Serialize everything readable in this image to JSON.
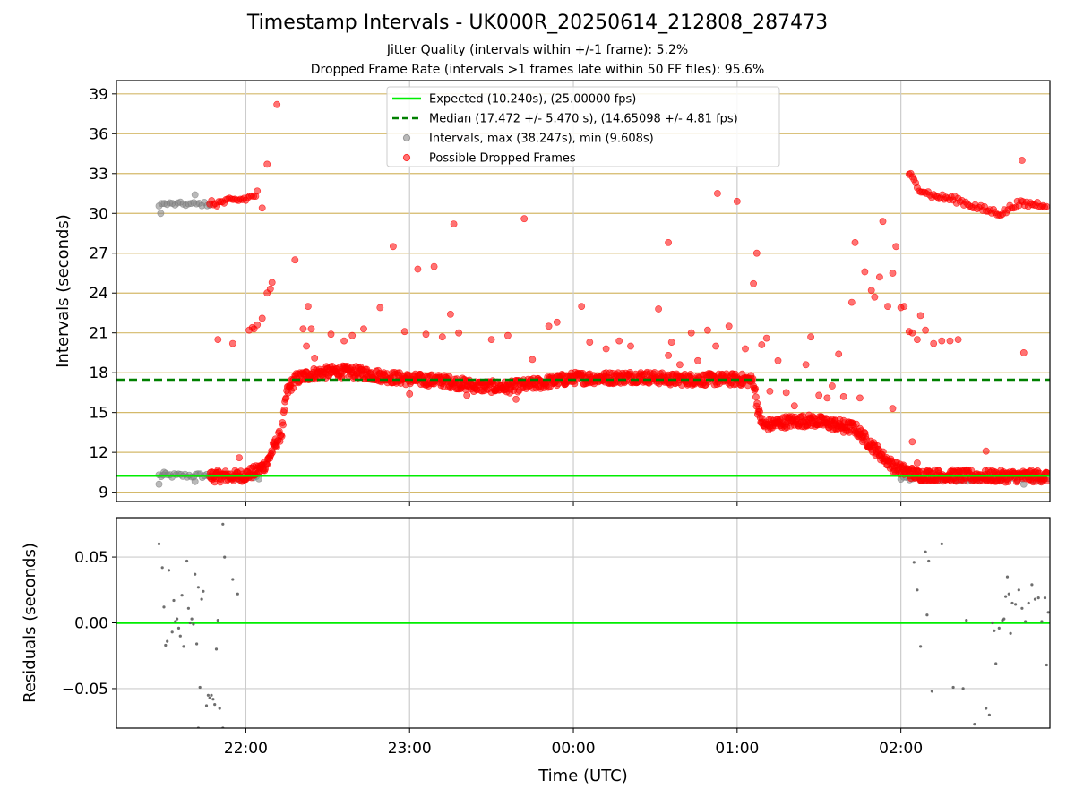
{
  "figure": {
    "title": "Timestamp Intervals - UK000R_20250614_212808_287473",
    "subtitle_1": "Jitter Quality (intervals within +/-1 frame): 5.2%",
    "subtitle_2": "Dropped Frame Rate (intervals >1 frames late within 50 FF files): 95.6%",
    "xlabel": "Time (UTC)"
  },
  "colors": {
    "expected": "#00ee00",
    "median": "#008000",
    "intervals": "#808080",
    "dropped": "#ff0000",
    "hgrid": "#d4b96a",
    "vgrid": "#cccccc",
    "residual_points": "#555555"
  },
  "chart_data": [
    {
      "type": "scatter",
      "ylabel": "Intervals (seconds)",
      "ylim": [
        8.3,
        40.0
      ],
      "yticks": [
        9,
        12,
        15,
        18,
        21,
        24,
        27,
        30,
        33,
        36,
        39
      ],
      "xlim_hours": [
        21.21,
        26.91
      ],
      "xticks": [
        {
          "h": 22,
          "label": "22:00"
        },
        {
          "h": 23,
          "label": "23:00"
        },
        {
          "h": 24,
          "label": "00:00"
        },
        {
          "h": 25,
          "label": "01:00"
        },
        {
          "h": 26,
          "label": "02:00"
        }
      ],
      "grid": true,
      "legend_position": "top-center",
      "legend": [
        {
          "key": "expected",
          "label": "Expected (10.240s), (25.00000 fps)"
        },
        {
          "key": "median",
          "label": "Median (17.472 +/- 5.470 s), (14.65098 +/- 4.81 fps)"
        },
        {
          "key": "intervals",
          "label": "Intervals, max (38.247s), min (9.608s)"
        },
        {
          "key": "dropped",
          "label": "Possible Dropped Frames"
        }
      ],
      "expected_value": 10.24,
      "median_value": 17.472,
      "intervals_low_segments": [
        {
          "x0": 21.47,
          "x1": 21.8,
          "y": 10.25,
          "n": 26
        },
        {
          "x0": 21.87,
          "x1": 22.08,
          "y": 10.1,
          "n": 14
        },
        {
          "x0": 26.0,
          "x1": 26.62,
          "y": 10.0,
          "n": 36
        },
        {
          "x0": 26.62,
          "x1": 26.9,
          "y": 10.0,
          "n": 10
        }
      ],
      "intervals_high_segment": {
        "x0": 21.47,
        "x1": 21.78,
        "y": 30.7,
        "n": 20
      },
      "intervals_outliers": [
        [
          21.47,
          9.6
        ],
        [
          21.48,
          30.0
        ],
        [
          21.5,
          10.5
        ],
        [
          21.69,
          9.8
        ],
        [
          21.69,
          31.4
        ],
        [
          26.75,
          9.6
        ],
        [
          26.85,
          9.8
        ]
      ],
      "dropped_trend": [
        [
          21.78,
          10.2
        ],
        [
          21.84,
          10.2
        ],
        [
          21.91,
          10.2
        ],
        [
          21.95,
          10.2
        ],
        [
          22.0,
          10.3
        ],
        [
          22.07,
          10.6
        ],
        [
          22.13,
          11.2
        ],
        [
          22.17,
          12.4
        ],
        [
          22.22,
          13.5
        ],
        [
          22.25,
          16.5
        ],
        [
          22.3,
          17.5
        ],
        [
          22.4,
          17.9
        ],
        [
          22.55,
          18.1
        ],
        [
          22.7,
          18.0
        ],
        [
          22.85,
          17.7
        ],
        [
          23.0,
          17.5
        ],
        [
          23.2,
          17.4
        ],
        [
          23.4,
          17.0
        ],
        [
          23.6,
          16.9
        ],
        [
          23.8,
          17.2
        ],
        [
          24.0,
          17.6
        ],
        [
          24.2,
          17.6
        ],
        [
          24.4,
          17.7
        ],
        [
          24.6,
          17.5
        ],
        [
          24.8,
          17.5
        ],
        [
          25.0,
          17.5
        ],
        [
          25.1,
          17.4
        ],
        [
          25.13,
          15.0
        ],
        [
          25.16,
          14.0
        ],
        [
          25.3,
          14.3
        ],
        [
          25.45,
          14.4
        ],
        [
          25.6,
          14.1
        ],
        [
          25.72,
          13.8
        ],
        [
          25.8,
          12.8
        ],
        [
          25.88,
          11.8
        ],
        [
          25.95,
          11.0
        ],
        [
          26.0,
          10.7
        ],
        [
          26.05,
          10.5
        ],
        [
          26.1,
          10.3
        ],
        [
          26.5,
          10.2
        ],
        [
          26.7,
          10.2
        ],
        [
          26.9,
          10.2
        ]
      ],
      "dropped_high_trend": [
        [
          21.78,
          30.7
        ],
        [
          21.9,
          30.9
        ],
        [
          22.0,
          31.1
        ],
        [
          22.06,
          31.4
        ],
        [
          22.08,
          31.6
        ],
        [
          26.05,
          33.0
        ],
        [
          26.1,
          32.0
        ],
        [
          26.2,
          31.3
        ],
        [
          26.35,
          31.0
        ],
        [
          26.5,
          30.3
        ],
        [
          26.62,
          30.0
        ],
        [
          26.7,
          30.7
        ],
        [
          26.9,
          30.7
        ]
      ],
      "dropped_scatter": [
        [
          21.83,
          20.5
        ],
        [
          21.92,
          20.2
        ],
        [
          21.96,
          11.6
        ],
        [
          22.02,
          21.2
        ],
        [
          22.04,
          21.4
        ],
        [
          22.05,
          21.3
        ],
        [
          22.07,
          21.6
        ],
        [
          22.1,
          22.1
        ],
        [
          22.13,
          24.0
        ],
        [
          22.15,
          24.3
        ],
        [
          22.16,
          24.8
        ],
        [
          22.19,
          38.2
        ],
        [
          22.13,
          33.7
        ],
        [
          22.1,
          30.4
        ],
        [
          22.3,
          26.5
        ],
        [
          22.35,
          21.3
        ],
        [
          22.38,
          23.0
        ],
        [
          22.4,
          21.3
        ],
        [
          22.42,
          19.1
        ],
        [
          22.37,
          20.0
        ],
        [
          22.52,
          20.9
        ],
        [
          22.6,
          20.4
        ],
        [
          22.65,
          20.8
        ],
        [
          22.72,
          21.3
        ],
        [
          22.82,
          22.9
        ],
        [
          22.9,
          27.5
        ],
        [
          22.97,
          21.1
        ],
        [
          23.0,
          16.4
        ],
        [
          23.05,
          25.8
        ],
        [
          23.15,
          26.0
        ],
        [
          23.1,
          20.9
        ],
        [
          23.25,
          22.4
        ],
        [
          23.27,
          29.2
        ],
        [
          23.2,
          20.7
        ],
        [
          23.3,
          21.0
        ],
        [
          23.35,
          16.3
        ],
        [
          23.5,
          20.5
        ],
        [
          23.52,
          16.7
        ],
        [
          23.6,
          20.8
        ],
        [
          23.7,
          29.6
        ],
        [
          23.65,
          16.0
        ],
        [
          23.75,
          19.0
        ],
        [
          23.85,
          21.5
        ],
        [
          23.9,
          21.8
        ],
        [
          24.05,
          23.0
        ],
        [
          24.1,
          20.3
        ],
        [
          24.2,
          19.8
        ],
        [
          24.28,
          20.4
        ],
        [
          24.35,
          20.0
        ],
        [
          24.52,
          22.8
        ],
        [
          24.58,
          19.3
        ],
        [
          24.6,
          20.3
        ],
        [
          24.65,
          18.6
        ],
        [
          24.58,
          27.8
        ],
        [
          24.72,
          21.0
        ],
        [
          24.76,
          18.9
        ],
        [
          24.82,
          21.2
        ],
        [
          24.87,
          20.0
        ],
        [
          24.88,
          31.5
        ],
        [
          24.95,
          21.5
        ],
        [
          25.0,
          30.9
        ],
        [
          25.05,
          19.8
        ],
        [
          25.1,
          24.7
        ],
        [
          25.12,
          27.0
        ],
        [
          25.15,
          20.1
        ],
        [
          25.18,
          20.6
        ],
        [
          25.2,
          16.6
        ],
        [
          25.25,
          18.9
        ],
        [
          25.3,
          16.5
        ],
        [
          25.35,
          15.5
        ],
        [
          25.42,
          18.6
        ],
        [
          25.45,
          20.7
        ],
        [
          25.5,
          16.3
        ],
        [
          25.55,
          16.1
        ],
        [
          25.58,
          17.0
        ],
        [
          25.62,
          19.4
        ],
        [
          25.65,
          16.2
        ],
        [
          25.7,
          23.3
        ],
        [
          25.72,
          27.8
        ],
        [
          25.75,
          16.1
        ],
        [
          25.78,
          25.6
        ],
        [
          25.82,
          24.2
        ],
        [
          25.84,
          23.7
        ],
        [
          25.87,
          25.2
        ],
        [
          25.89,
          29.4
        ],
        [
          25.92,
          23.0
        ],
        [
          25.95,
          25.5
        ],
        [
          25.97,
          27.5
        ],
        [
          26.0,
          22.9
        ],
        [
          26.02,
          23.0
        ],
        [
          26.05,
          21.1
        ],
        [
          26.07,
          21.0
        ],
        [
          26.1,
          20.5
        ],
        [
          26.12,
          22.3
        ],
        [
          26.15,
          21.2
        ],
        [
          26.2,
          20.2
        ],
        [
          26.25,
          20.4
        ],
        [
          26.3,
          20.4
        ],
        [
          26.35,
          20.5
        ],
        [
          26.1,
          11.2
        ],
        [
          26.07,
          12.8
        ],
        [
          25.95,
          15.3
        ],
        [
          26.52,
          12.1
        ],
        [
          26.75,
          19.5
        ],
        [
          26.74,
          34.0
        ],
        [
          25.65,
          13.5
        ],
        [
          25.6,
          13.8
        ]
      ]
    },
    {
      "type": "scatter",
      "ylabel": "Residuals (seconds)",
      "ylim": [
        -0.08,
        0.08
      ],
      "yticks": [
        {
          "v": 0.05,
          "label": "0.05"
        },
        {
          "v": 0.0,
          "label": "0.00"
        },
        {
          "v": -0.05,
          "label": "−0.05"
        }
      ],
      "xlim_hours": [
        21.21,
        26.91
      ],
      "grid": true,
      "zero_line": 0.0,
      "points": [
        [
          21.47,
          0.06
        ],
        [
          21.49,
          0.042
        ],
        [
          21.5,
          0.012
        ],
        [
          21.51,
          -0.017
        ],
        [
          21.52,
          -0.014
        ],
        [
          21.53,
          0.04
        ],
        [
          21.55,
          -0.007
        ],
        [
          21.56,
          0.017
        ],
        [
          21.57,
          0.001
        ],
        [
          21.58,
          0.003
        ],
        [
          21.59,
          -0.004
        ],
        [
          21.6,
          -0.01
        ],
        [
          21.61,
          0.021
        ],
        [
          21.62,
          -0.018
        ],
        [
          21.64,
          0.047
        ],
        [
          21.65,
          0.011
        ],
        [
          21.66,
          0.0
        ],
        [
          21.67,
          0.003
        ],
        [
          21.68,
          -0.001
        ],
        [
          21.69,
          0.037
        ],
        [
          21.7,
          -0.016
        ],
        [
          21.71,
          0.027
        ],
        [
          21.72,
          -0.049
        ],
        [
          21.73,
          0.018
        ],
        [
          21.74,
          0.024
        ],
        [
          21.76,
          -0.063
        ],
        [
          21.77,
          -0.055
        ],
        [
          21.78,
          -0.057
        ],
        [
          21.79,
          -0.055
        ],
        [
          21.8,
          -0.058
        ],
        [
          21.81,
          -0.062
        ],
        [
          21.82,
          -0.02
        ],
        [
          21.83,
          0.002
        ],
        [
          21.84,
          -0.065
        ],
        [
          21.86,
          0.075
        ],
        [
          21.87,
          0.05
        ],
        [
          21.71,
          -0.08
        ],
        [
          21.86,
          -0.08
        ],
        [
          21.92,
          0.033
        ],
        [
          21.95,
          0.022
        ],
        [
          26.08,
          0.046
        ],
        [
          26.1,
          0.025
        ],
        [
          26.12,
          -0.018
        ],
        [
          26.15,
          0.054
        ],
        [
          26.17,
          0.047
        ],
        [
          26.16,
          0.006
        ],
        [
          26.19,
          -0.052
        ],
        [
          26.25,
          0.06
        ],
        [
          26.32,
          -0.049
        ],
        [
          26.38,
          -0.05
        ],
        [
          26.4,
          0.002
        ],
        [
          26.45,
          -0.077
        ],
        [
          26.52,
          -0.065
        ],
        [
          26.54,
          -0.07
        ],
        [
          26.56,
          0.0
        ],
        [
          26.57,
          -0.006
        ],
        [
          26.58,
          -0.031
        ],
        [
          26.6,
          -0.004
        ],
        [
          26.62,
          0.002
        ],
        [
          26.63,
          0.003
        ],
        [
          26.64,
          0.02
        ],
        [
          26.65,
          0.035
        ],
        [
          26.66,
          0.022
        ],
        [
          26.67,
          -0.008
        ],
        [
          26.68,
          0.015
        ],
        [
          26.7,
          0.014
        ],
        [
          26.72,
          0.025
        ],
        [
          26.74,
          0.011
        ],
        [
          26.76,
          0.001
        ],
        [
          26.78,
          0.015
        ],
        [
          26.8,
          0.029
        ],
        [
          26.82,
          0.018
        ],
        [
          26.84,
          0.019
        ],
        [
          26.86,
          0.001
        ],
        [
          26.88,
          0.019
        ],
        [
          26.89,
          -0.032
        ],
        [
          26.9,
          0.008
        ]
      ]
    }
  ]
}
